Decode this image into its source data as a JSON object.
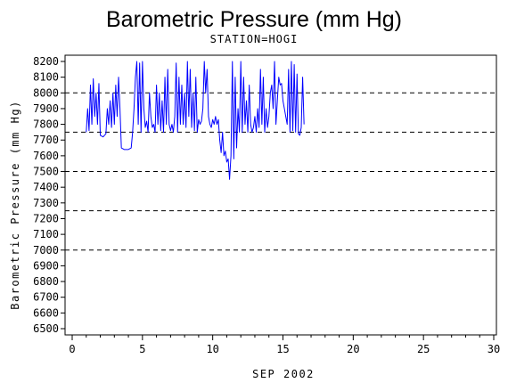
{
  "chart_data": {
    "type": "line",
    "title": "Barometric Pressure (mm Hg)",
    "subtitle": "STATION=HOGI",
    "xlabel": "SEP 2002",
    "ylabel": "Barometric Pressure (mm Hg)",
    "xlim": [
      0,
      30
    ],
    "ylim": [
      6500,
      8200
    ],
    "x_ticks": [
      0,
      5,
      10,
      15,
      20,
      25,
      30
    ],
    "y_ticks": [
      6500,
      6600,
      6700,
      6800,
      6900,
      7000,
      7100,
      7200,
      7300,
      7400,
      7500,
      7600,
      7700,
      7800,
      7900,
      8000,
      8100,
      8200
    ],
    "reference_lines": [
      7000,
      7250,
      7500,
      7750,
      8000
    ],
    "line_color": "#0000ff",
    "series": [
      {
        "points": [
          [
            1.0,
            7750
          ],
          [
            1.1,
            7900
          ],
          [
            1.2,
            7760
          ],
          [
            1.3,
            8050
          ],
          [
            1.4,
            7800
          ],
          [
            1.5,
            8090
          ],
          [
            1.6,
            7850
          ],
          [
            1.7,
            8000
          ],
          [
            1.8,
            7800
          ],
          [
            1.9,
            8060
          ],
          [
            2.0,
            7730
          ],
          [
            2.2,
            7720
          ],
          [
            2.4,
            7740
          ],
          [
            2.5,
            7900
          ],
          [
            2.6,
            7800
          ],
          [
            2.7,
            7950
          ],
          [
            2.8,
            7780
          ],
          [
            2.9,
            8000
          ],
          [
            3.0,
            7800
          ],
          [
            3.1,
            8050
          ],
          [
            3.2,
            7850
          ],
          [
            3.3,
            8100
          ],
          [
            3.4,
            7900
          ],
          [
            3.5,
            7650
          ],
          [
            3.7,
            7640
          ],
          [
            4.0,
            7640
          ],
          [
            4.2,
            7650
          ],
          [
            4.3,
            7750
          ],
          [
            4.4,
            7900
          ],
          [
            4.5,
            8100
          ],
          [
            4.6,
            8200
          ],
          [
            4.7,
            7800
          ],
          [
            4.8,
            8190
          ],
          [
            4.9,
            7750
          ],
          [
            5.0,
            8200
          ],
          [
            5.1,
            7900
          ],
          [
            5.2,
            7780
          ],
          [
            5.3,
            7820
          ],
          [
            5.4,
            7750
          ],
          [
            5.5,
            8000
          ],
          [
            5.6,
            7850
          ],
          [
            5.7,
            7780
          ],
          [
            5.8,
            7800
          ],
          [
            5.9,
            7750
          ],
          [
            6.0,
            8050
          ],
          [
            6.1,
            7800
          ],
          [
            6.2,
            8000
          ],
          [
            6.3,
            7760
          ],
          [
            6.4,
            7950
          ],
          [
            6.5,
            7750
          ],
          [
            6.6,
            8100
          ],
          [
            6.7,
            7800
          ],
          [
            6.8,
            8150
          ],
          [
            6.9,
            7800
          ],
          [
            7.0,
            7760
          ],
          [
            7.1,
            7800
          ],
          [
            7.2,
            7750
          ],
          [
            7.3,
            7850
          ],
          [
            7.4,
            8190
          ],
          [
            7.5,
            7750
          ],
          [
            7.6,
            8100
          ],
          [
            7.7,
            7800
          ],
          [
            7.8,
            8050
          ],
          [
            7.9,
            7800
          ],
          [
            8.0,
            8000
          ],
          [
            8.1,
            7780
          ],
          [
            8.2,
            8200
          ],
          [
            8.3,
            7850
          ],
          [
            8.4,
            8150
          ],
          [
            8.5,
            7780
          ],
          [
            8.6,
            8000
          ],
          [
            8.7,
            7760
          ],
          [
            8.8,
            8100
          ],
          [
            8.9,
            7750
          ],
          [
            9.0,
            7830
          ],
          [
            9.1,
            7800
          ],
          [
            9.2,
            7820
          ],
          [
            9.3,
            7900
          ],
          [
            9.4,
            8200
          ],
          [
            9.5,
            8000
          ],
          [
            9.6,
            8150
          ],
          [
            9.7,
            7850
          ],
          [
            9.8,
            7800
          ],
          [
            9.9,
            7780
          ],
          [
            10.0,
            7830
          ],
          [
            10.1,
            7800
          ],
          [
            10.2,
            7850
          ],
          [
            10.3,
            7800
          ],
          [
            10.4,
            7830
          ],
          [
            10.5,
            7700
          ],
          [
            10.6,
            7620
          ],
          [
            10.7,
            7750
          ],
          [
            10.8,
            7600
          ],
          [
            10.9,
            7630
          ],
          [
            11.0,
            7560
          ],
          [
            11.1,
            7580
          ],
          [
            11.2,
            7450
          ],
          [
            11.3,
            7600
          ],
          [
            11.4,
            8200
          ],
          [
            11.5,
            7580
          ],
          [
            11.6,
            8100
          ],
          [
            11.7,
            7650
          ],
          [
            11.8,
            7900
          ],
          [
            11.9,
            7750
          ],
          [
            12.0,
            8200
          ],
          [
            12.1,
            7750
          ],
          [
            12.2,
            8100
          ],
          [
            12.3,
            7800
          ],
          [
            12.4,
            7950
          ],
          [
            12.5,
            7750
          ],
          [
            12.6,
            8050
          ],
          [
            12.7,
            7800
          ],
          [
            12.8,
            7750
          ],
          [
            12.9,
            7780
          ],
          [
            13.0,
            7850
          ],
          [
            13.1,
            7750
          ],
          [
            13.2,
            7900
          ],
          [
            13.3,
            7780
          ],
          [
            13.4,
            8150
          ],
          [
            13.5,
            7800
          ],
          [
            13.6,
            8100
          ],
          [
            13.7,
            7750
          ],
          [
            13.8,
            7900
          ],
          [
            13.9,
            7780
          ],
          [
            14.0,
            7850
          ],
          [
            14.1,
            8000
          ],
          [
            14.2,
            8050
          ],
          [
            14.3,
            7900
          ],
          [
            14.4,
            8200
          ],
          [
            14.5,
            7800
          ],
          [
            14.6,
            7950
          ],
          [
            14.7,
            8100
          ],
          [
            14.8,
            8050
          ],
          [
            14.9,
            8060
          ],
          [
            15.0,
            7950
          ],
          [
            15.1,
            7900
          ],
          [
            15.2,
            7850
          ],
          [
            15.3,
            7800
          ],
          [
            15.4,
            8150
          ],
          [
            15.5,
            7750
          ],
          [
            15.6,
            8200
          ],
          [
            15.7,
            7760
          ],
          [
            15.8,
            8180
          ],
          [
            15.9,
            7750
          ],
          [
            16.0,
            8120
          ],
          [
            16.1,
            7740
          ],
          [
            16.2,
            7730
          ],
          [
            16.3,
            7780
          ],
          [
            16.4,
            8100
          ],
          [
            16.5,
            7800
          ]
        ]
      }
    ]
  }
}
